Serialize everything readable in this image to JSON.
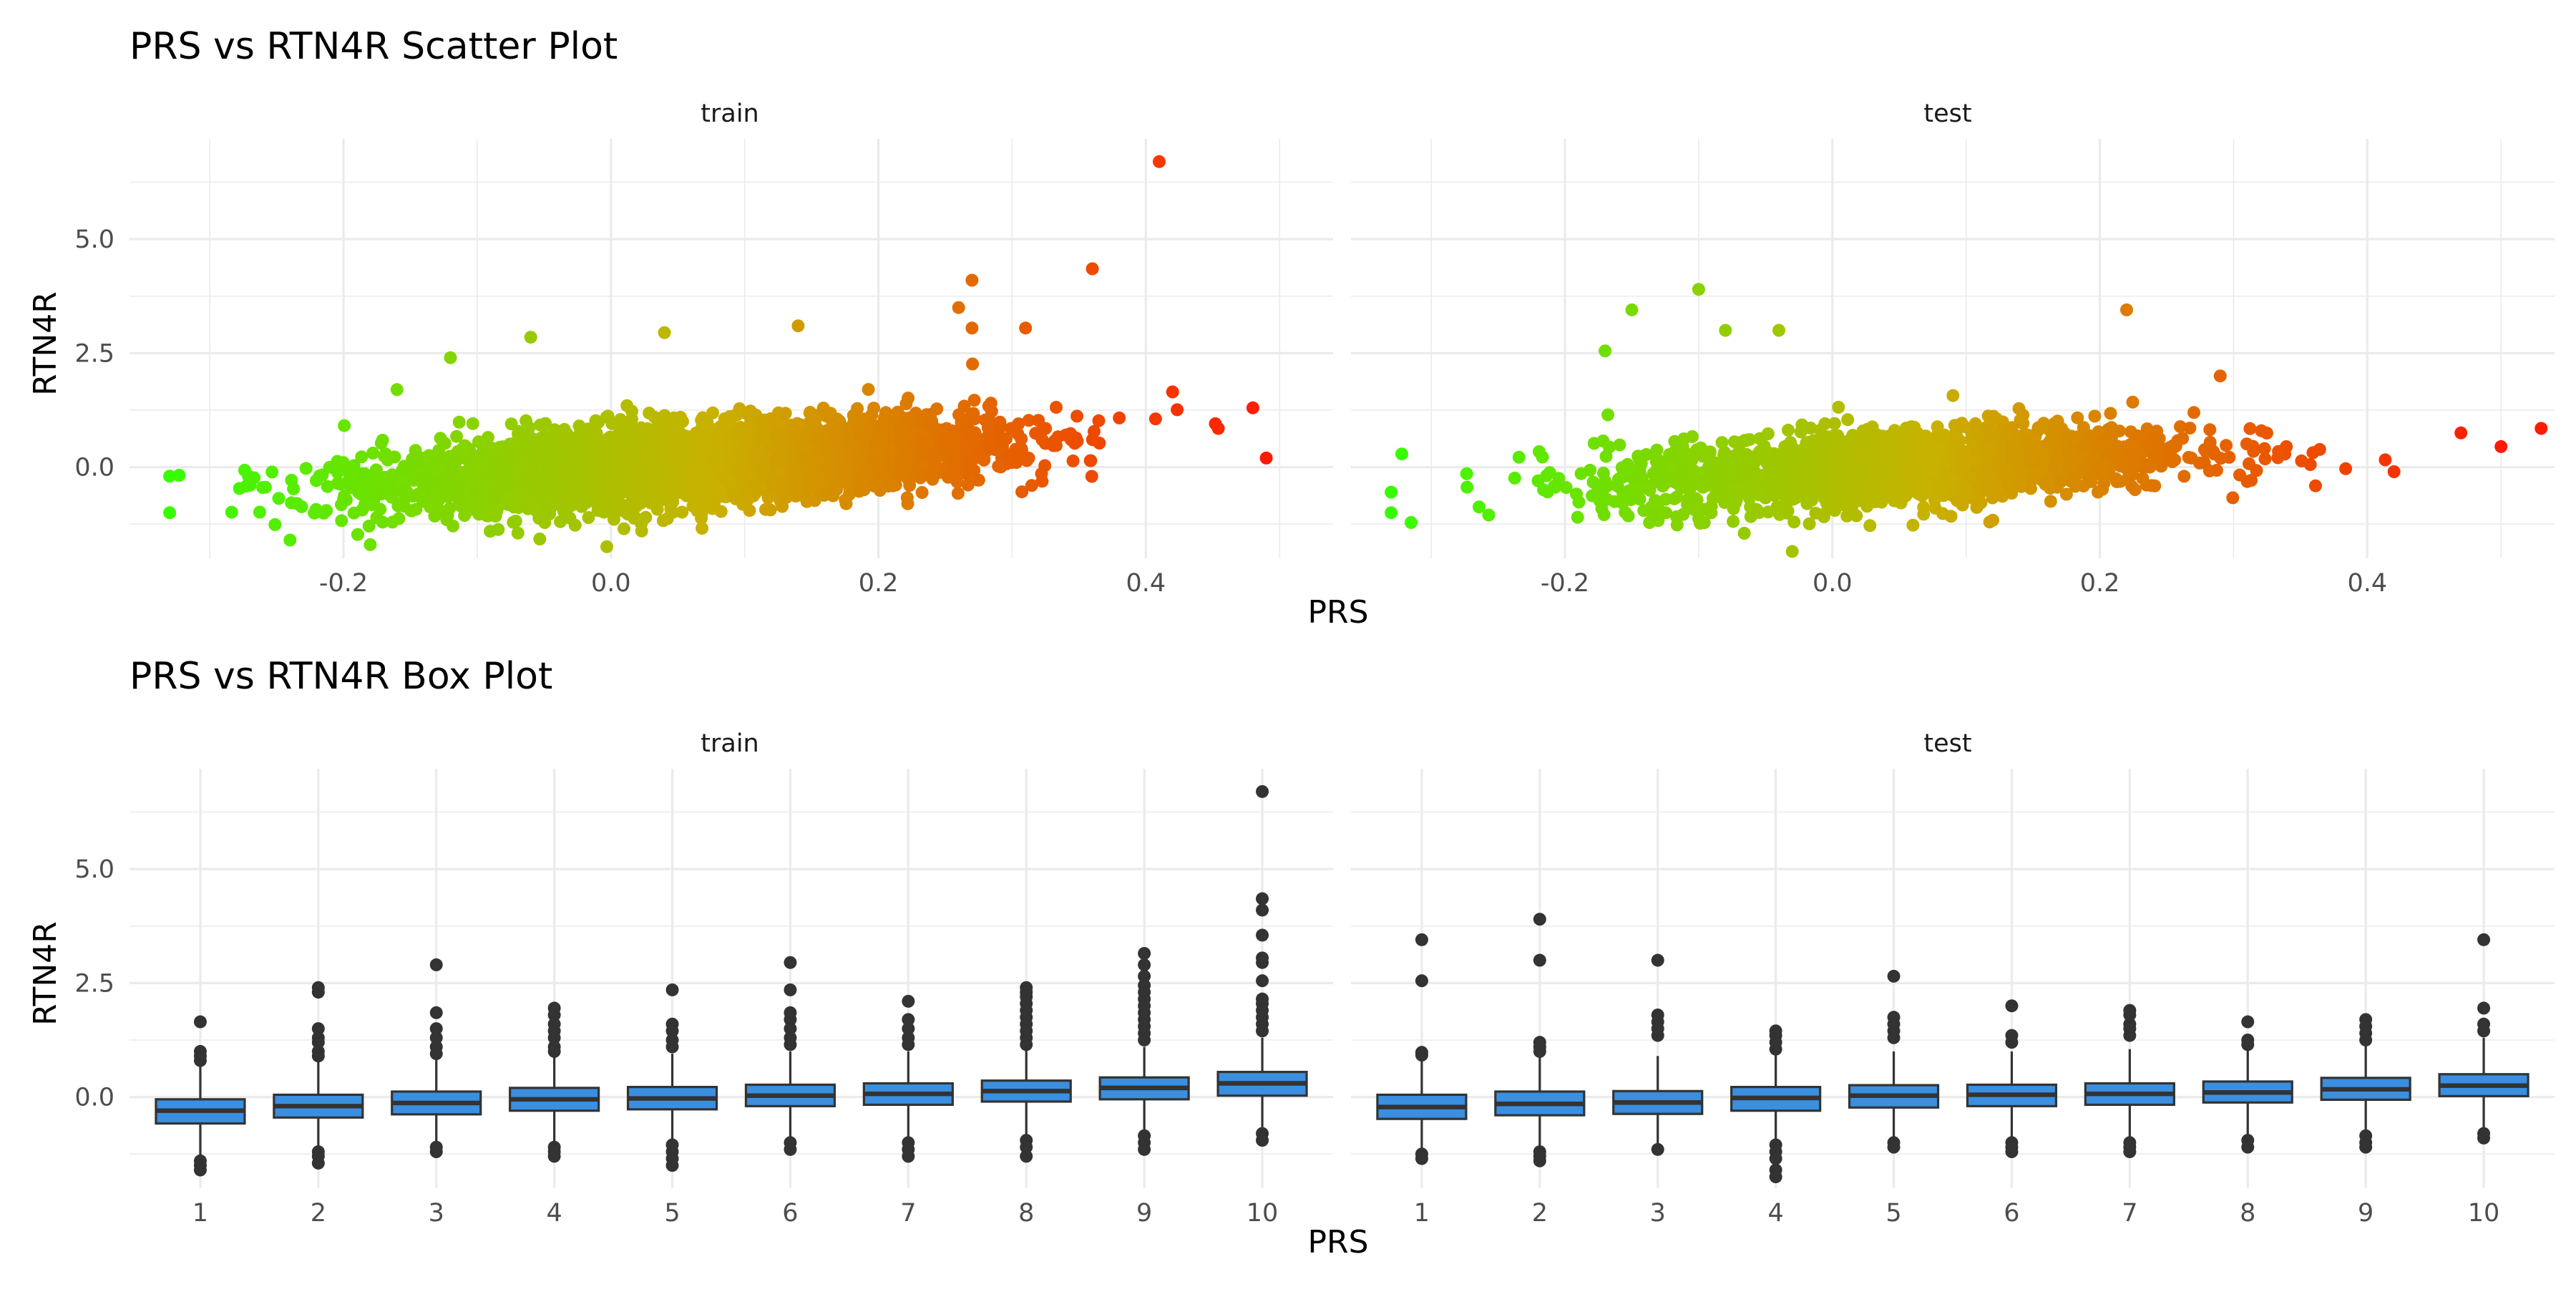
{
  "chart_data": [
    {
      "type": "scatter",
      "title": "PRS vs RTN4R Scatter Plot",
      "xlabel": "PRS",
      "ylabel": "RTN4R",
      "xlim": [
        -0.36,
        0.54
      ],
      "ylim": [
        -2.0,
        7.2
      ],
      "x_ticks": [
        -0.2,
        0.0,
        0.2,
        0.4
      ],
      "x_tick_labels": [
        "-0.2",
        "0.0",
        "0.2",
        "0.4"
      ],
      "y_ticks": [
        0.0,
        2.5,
        5.0
      ],
      "y_tick_labels": [
        "0.0",
        "2.5",
        "5.0"
      ],
      "color_by": "PRS",
      "color_scale": {
        "low": "#33ff00",
        "mid": "#c9b100",
        "high": "#ff1a00"
      },
      "grid": true,
      "facets": [
        {
          "name": "train",
          "approx_n": 3800,
          "trend": {
            "intercept": -0.05,
            "slope": 1.9
          },
          "x_mean": 0.06,
          "x_sd": 0.11,
          "x_range": [
            -0.34,
            0.49
          ],
          "highlighted_points": [
            {
              "x": 0.41,
              "y": 6.7
            },
            {
              "x": 0.36,
              "y": 4.35
            },
            {
              "x": 0.27,
              "y": 4.1
            },
            {
              "x": 0.26,
              "y": 3.5
            },
            {
              "x": 0.31,
              "y": 3.05
            },
            {
              "x": 0.27,
              "y": 3.05
            },
            {
              "x": 0.14,
              "y": 3.1
            },
            {
              "x": 0.04,
              "y": 2.95
            },
            {
              "x": -0.06,
              "y": 2.85
            },
            {
              "x": 0.42,
              "y": 1.65
            },
            {
              "x": 0.48,
              "y": 1.3
            },
            {
              "x": 0.49,
              "y": 0.2
            },
            {
              "x": -0.33,
              "y": -1.0
            },
            {
              "x": -0.33,
              "y": -0.2
            },
            {
              "x": -0.24,
              "y": -1.6
            },
            {
              "x": -0.18,
              "y": -1.7
            },
            {
              "x": -0.16,
              "y": 1.7
            },
            {
              "x": -0.12,
              "y": 2.4
            }
          ]
        },
        {
          "name": "test",
          "approx_n": 1700,
          "trend": {
            "intercept": -0.08,
            "slope": 1.6
          },
          "x_mean": 0.05,
          "x_sd": 0.11,
          "x_range": [
            -0.33,
            0.53
          ],
          "highlighted_points": [
            {
              "x": 0.53,
              "y": 0.85
            },
            {
              "x": 0.5,
              "y": 0.45
            },
            {
              "x": 0.42,
              "y": -0.1
            },
            {
              "x": 0.22,
              "y": 3.45
            },
            {
              "x": -0.1,
              "y": 3.9
            },
            {
              "x": -0.15,
              "y": 3.45
            },
            {
              "x": -0.08,
              "y": 3.0
            },
            {
              "x": -0.04,
              "y": 3.0
            },
            {
              "x": -0.17,
              "y": 2.55
            },
            {
              "x": 0.29,
              "y": 2.0
            },
            {
              "x": -0.33,
              "y": -1.0
            },
            {
              "x": -0.33,
              "y": -0.55
            },
            {
              "x": -0.03,
              "y": -1.85
            },
            {
              "x": 0.47,
              "y": 0.75
            }
          ]
        }
      ]
    },
    {
      "type": "box",
      "title": "PRS vs RTN4R Box Plot",
      "xlabel": "PRS",
      "ylabel": "RTN4R",
      "categories": [
        "1",
        "2",
        "3",
        "4",
        "5",
        "6",
        "7",
        "8",
        "9",
        "10"
      ],
      "ylim": [
        -2.0,
        7.2
      ],
      "y_ticks": [
        0.0,
        2.5,
        5.0
      ],
      "y_tick_labels": [
        "0.0",
        "2.5",
        "5.0"
      ],
      "fill_color": "#3a8fe0",
      "grid": true,
      "facets": [
        {
          "name": "train",
          "boxes": [
            {
              "q1": -0.58,
              "median": -0.3,
              "q3": -0.05,
              "whisker_low": -1.3,
              "whisker_high": 0.72,
              "outliers": [
                1.65,
                1.0,
                0.9,
                0.8,
                -1.4,
                -1.5,
                -1.6
              ]
            },
            {
              "q1": -0.45,
              "median": -0.2,
              "q3": 0.05,
              "whisker_low": -1.15,
              "whisker_high": 0.8,
              "outliers": [
                2.4,
                2.3,
                1.5,
                1.3,
                1.2,
                1.0,
                0.9,
                -1.2,
                -1.3,
                -1.45
              ]
            },
            {
              "q1": -0.38,
              "median": -0.13,
              "q3": 0.12,
              "whisker_low": -1.05,
              "whisker_high": 0.85,
              "outliers": [
                2.9,
                1.85,
                1.5,
                1.3,
                1.1,
                0.95,
                -1.1,
                -1.2
              ]
            },
            {
              "q1": -0.3,
              "median": -0.05,
              "q3": 0.2,
              "whisker_low": -1.05,
              "whisker_high": 0.9,
              "outliers": [
                1.95,
                1.8,
                1.6,
                1.45,
                1.3,
                1.1,
                1.0,
                -1.1,
                -1.2,
                -1.3
              ]
            },
            {
              "q1": -0.27,
              "median": -0.03,
              "q3": 0.22,
              "whisker_low": -1.0,
              "whisker_high": 0.95,
              "outliers": [
                2.35,
                1.6,
                1.45,
                1.25,
                1.1,
                -1.05,
                -1.2,
                -1.35,
                -1.5
              ]
            },
            {
              "q1": -0.2,
              "median": 0.03,
              "q3": 0.27,
              "whisker_low": -0.95,
              "whisker_high": 1.0,
              "outliers": [
                2.95,
                2.35,
                1.85,
                1.7,
                1.5,
                1.3,
                1.15,
                -1.0,
                -1.15
              ]
            },
            {
              "q1": -0.17,
              "median": 0.07,
              "q3": 0.3,
              "whisker_low": -0.9,
              "whisker_high": 1.0,
              "outliers": [
                2.1,
                1.7,
                1.5,
                1.3,
                1.15,
                -1.0,
                -1.15,
                -1.3
              ]
            },
            {
              "q1": -0.1,
              "median": 0.13,
              "q3": 0.36,
              "whisker_low": -0.85,
              "whisker_high": 1.05,
              "outliers": [
                2.4,
                2.3,
                2.2,
                2.05,
                1.9,
                1.75,
                1.6,
                1.45,
                1.3,
                1.15,
                -0.95,
                -1.1,
                -1.3
              ]
            },
            {
              "q1": -0.05,
              "median": 0.2,
              "q3": 0.43,
              "whisker_low": -0.75,
              "whisker_high": 1.1,
              "outliers": [
                3.15,
                2.9,
                2.65,
                2.45,
                2.3,
                2.15,
                2.0,
                1.85,
                1.7,
                1.55,
                1.4,
                1.25,
                -0.85,
                -1.0,
                -1.15
              ]
            },
            {
              "q1": 0.03,
              "median": 0.3,
              "q3": 0.55,
              "whisker_low": -0.7,
              "whisker_high": 1.3,
              "outliers": [
                6.7,
                4.35,
                4.1,
                3.55,
                3.05,
                2.95,
                2.55,
                2.15,
                2.05,
                1.9,
                1.75,
                1.6,
                1.45,
                -0.8,
                -0.95
              ]
            }
          ]
        },
        {
          "name": "test",
          "boxes": [
            {
              "q1": -0.48,
              "median": -0.22,
              "q3": 0.05,
              "whisker_low": -1.15,
              "whisker_high": 0.85,
              "outliers": [
                3.45,
                2.55,
                0.98,
                0.92,
                -1.25,
                -1.35
              ]
            },
            {
              "q1": -0.4,
              "median": -0.15,
              "q3": 0.12,
              "whisker_low": -1.1,
              "whisker_high": 0.9,
              "outliers": [
                3.9,
                3.0,
                1.2,
                1.1,
                1.0,
                -1.2,
                -1.3,
                -1.4
              ]
            },
            {
              "q1": -0.37,
              "median": -0.12,
              "q3": 0.13,
              "whisker_low": -1.05,
              "whisker_high": 0.9,
              "outliers": [
                3.0,
                1.8,
                1.65,
                1.5,
                1.35,
                -1.15
              ]
            },
            {
              "q1": -0.3,
              "median": -0.02,
              "q3": 0.22,
              "whisker_low": -1.0,
              "whisker_high": 0.95,
              "outliers": [
                1.45,
                1.35,
                1.2,
                1.05,
                -1.05,
                -1.2,
                -1.35,
                -1.6,
                -1.75
              ]
            },
            {
              "q1": -0.23,
              "median": 0.03,
              "q3": 0.26,
              "whisker_low": -0.95,
              "whisker_high": 1.0,
              "outliers": [
                2.65,
                1.75,
                1.6,
                1.45,
                1.3,
                -1.0,
                -1.1
              ]
            },
            {
              "q1": -0.2,
              "median": 0.05,
              "q3": 0.27,
              "whisker_low": -0.95,
              "whisker_high": 1.0,
              "outliers": [
                2.0,
                1.35,
                1.2,
                -1.0,
                -1.1,
                -1.2
              ]
            },
            {
              "q1": -0.17,
              "median": 0.07,
              "q3": 0.3,
              "whisker_low": -0.9,
              "whisker_high": 1.05,
              "outliers": [
                1.9,
                1.8,
                1.6,
                1.5,
                1.35,
                -1.0,
                -1.1,
                -1.2
              ]
            },
            {
              "q1": -0.12,
              "median": 0.1,
              "q3": 0.34,
              "whisker_low": -0.85,
              "whisker_high": 1.1,
              "outliers": [
                1.65,
                1.25,
                1.15,
                -0.95,
                -1.1
              ]
            },
            {
              "q1": -0.06,
              "median": 0.17,
              "q3": 0.42,
              "whisker_low": -0.8,
              "whisker_high": 1.15,
              "outliers": [
                1.7,
                1.55,
                1.4,
                1.25,
                -0.85,
                -1.0,
                -1.1
              ]
            },
            {
              "q1": 0.02,
              "median": 0.25,
              "q3": 0.5,
              "whisker_low": -0.7,
              "whisker_high": 1.3,
              "outliers": [
                3.45,
                1.95,
                1.6,
                1.45,
                -0.8,
                -0.9
              ]
            }
          ]
        }
      ]
    }
  ]
}
